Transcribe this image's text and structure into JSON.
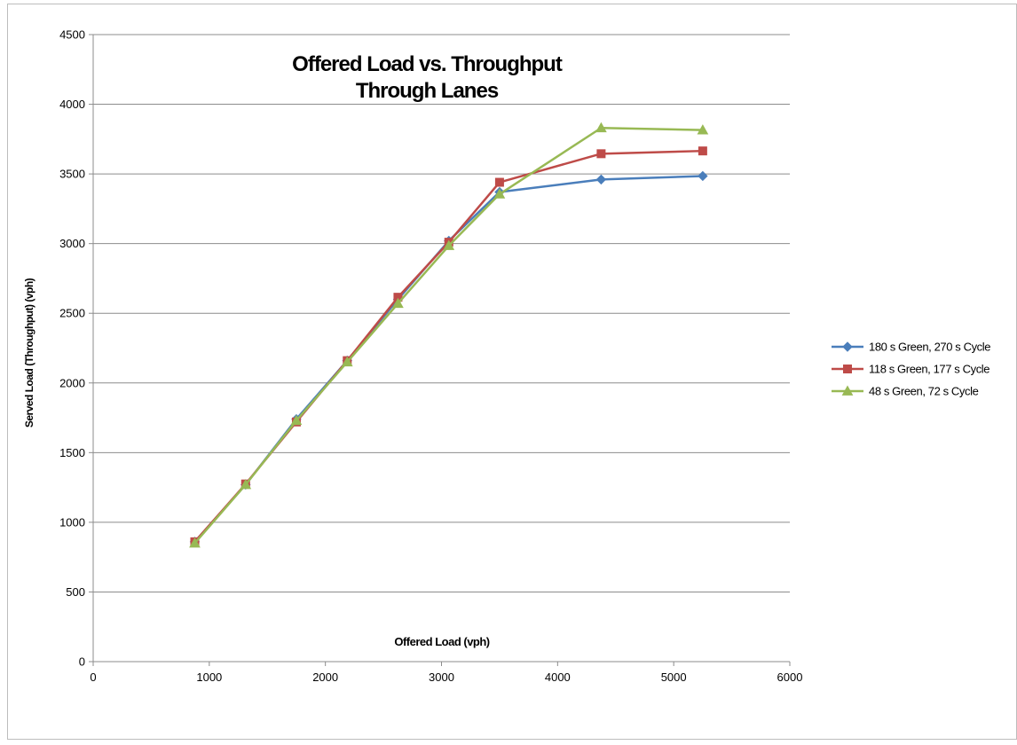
{
  "chart_data": {
    "type": "line",
    "title_lines": [
      "Offered Load vs. Throughput",
      "Through Lanes"
    ],
    "xlabel": "Offered Load (vph)",
    "ylabel": "Served Load (Throughput) (vph)",
    "xlim": [
      0,
      6000
    ],
    "ylim": [
      0,
      4500
    ],
    "x_ticks": [
      0,
      1000,
      2000,
      3000,
      4000,
      5000,
      6000
    ],
    "y_ticks": [
      0,
      500,
      1000,
      1500,
      2000,
      2500,
      3000,
      3500,
      4000,
      4500
    ],
    "grid": "horizontal",
    "legend_position": "right",
    "x": [
      875,
      1313,
      1750,
      2188,
      2625,
      3063,
      3500,
      4375,
      5250
    ],
    "series": [
      {
        "name": "180 s Green, 270 s Cycle",
        "color": "#4a7ebb",
        "marker": "diamond",
        "values": [
          860,
          1270,
          1740,
          2160,
          2600,
          3020,
          3370,
          3460,
          3485
        ]
      },
      {
        "name": "118 s Green, 177 s Cycle",
        "color": "#be4b48",
        "marker": "square",
        "values": [
          860,
          1275,
          1720,
          2160,
          2615,
          3010,
          3440,
          3645,
          3665
        ]
      },
      {
        "name": "48 s Green, 72 s Cycle",
        "color": "#98b954",
        "marker": "triangle",
        "values": [
          850,
          1270,
          1730,
          2150,
          2570,
          2985,
          3355,
          3830,
          3815
        ]
      }
    ]
  }
}
